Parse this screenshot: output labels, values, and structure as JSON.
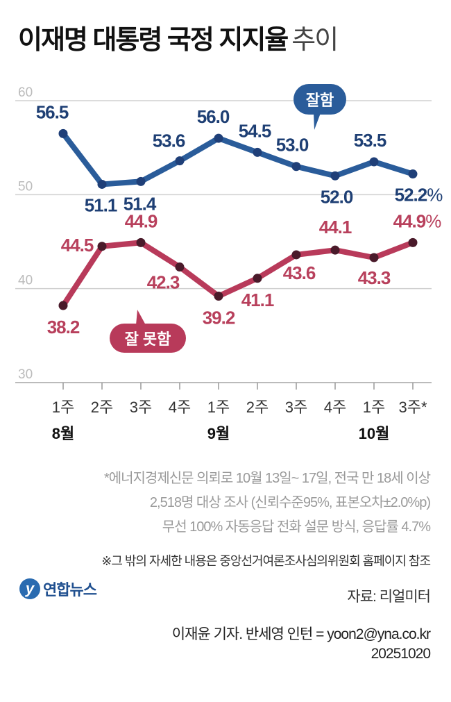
{
  "title": {
    "main": "이재명 대통령 국정 지지율",
    "sub": "추이"
  },
  "chart_data": {
    "type": "line",
    "title": "이재명 대통령 국정 지지율 추이",
    "x": [
      "1주",
      "2주",
      "3주",
      "4주",
      "1주",
      "2주",
      "3주",
      "4주",
      "1주",
      "3주*"
    ],
    "month_labels": [
      {
        "label": "8월",
        "index": 0
      },
      {
        "label": "9월",
        "index": 4
      },
      {
        "label": "10월",
        "index": 8
      }
    ],
    "yticks": [
      60,
      50,
      40,
      30
    ],
    "ylim": [
      30,
      60
    ],
    "grid": true,
    "unit": "%",
    "series": [
      {
        "name": "잘함",
        "color": "#2a5c9a",
        "values": [
          56.5,
          51.1,
          51.4,
          53.6,
          56.0,
          54.5,
          53.0,
          52.0,
          53.5,
          52.2
        ],
        "labels": [
          "56.5",
          "51.1",
          "51.4",
          "53.6",
          "56.0",
          "54.5",
          "53.0",
          "52.0",
          "53.5",
          "52.2"
        ]
      },
      {
        "name": "잘 못함",
        "color": "#b83a5a",
        "values": [
          38.2,
          44.5,
          44.9,
          42.3,
          39.2,
          41.1,
          43.6,
          44.1,
          43.3,
          44.9
        ],
        "labels": [
          "38.2",
          "44.5",
          "44.9",
          "42.3",
          "39.2",
          "41.1",
          "43.6",
          "44.1",
          "43.3",
          "44.9"
        ]
      }
    ]
  },
  "notes": [
    "*에너지경제신문 의뢰로 10월 13일~ 17일, 전국 만 18세 이상",
    "2,518명 대상 조사 (신뢰수준95%, 표본오차±2.0%p)",
    "무선 100% 자동응답 전화 설문 방식, 응답률 4.7%"
  ],
  "note2": "※그 밖의 자세한 내용은 중앙선거여론조사심의위원회 홈페이지 참조",
  "logo": {
    "mark": "y",
    "text": "연합뉴스"
  },
  "source": "자료: 리얼미터",
  "credit": [
    "이재윤 기자. 반세영 인턴 = yoon2@yna.co.kr",
    "20251020"
  ]
}
